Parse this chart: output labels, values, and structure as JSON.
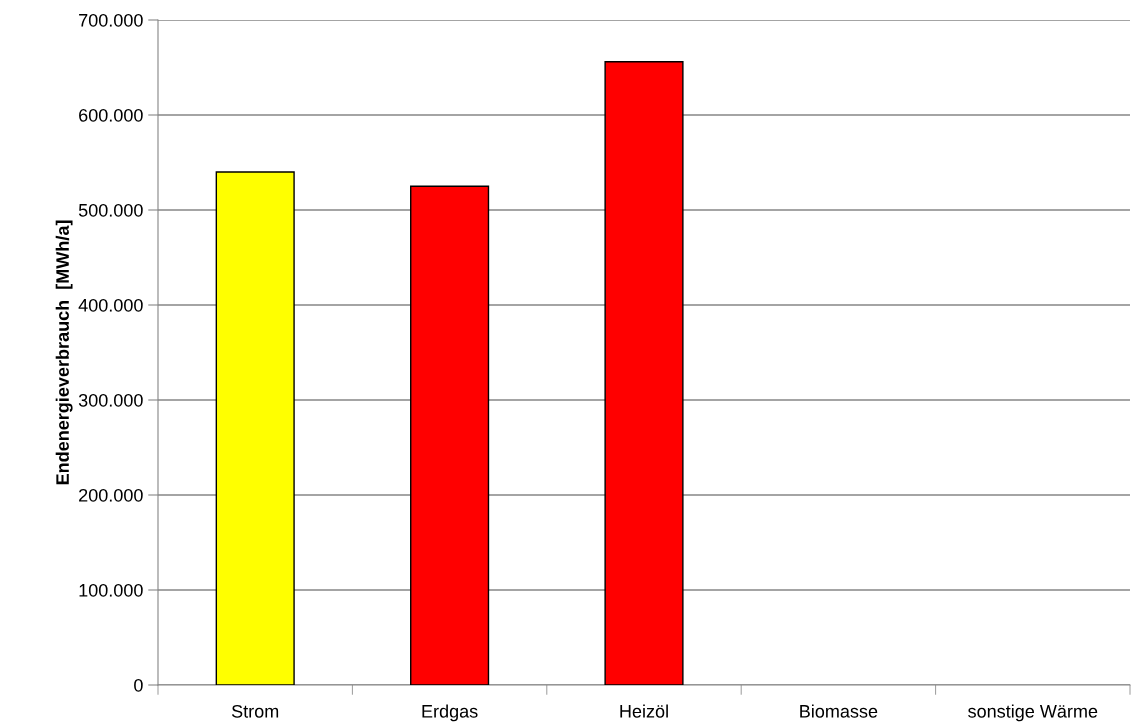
{
  "chart_data": {
    "type": "bar",
    "ylabel": "Endenergieverbrauch  [MWh/a]",
    "categories": [
      "Strom",
      "Erdgas",
      "Heizöl",
      "Biomasse",
      "sonstige Wärme"
    ],
    "values": [
      540000,
      525000,
      656000,
      0,
      0
    ],
    "colors": [
      "#ffff00",
      "#ff0000",
      "#ff0000",
      "#ff0000",
      "#ff0000"
    ],
    "ylim": [
      0,
      700000
    ],
    "yticks": [
      {
        "value": 0,
        "label": "0"
      },
      {
        "value": 100000,
        "label": "100.000"
      },
      {
        "value": 200000,
        "label": "200.000"
      },
      {
        "value": 300000,
        "label": "300.000"
      },
      {
        "value": 400000,
        "label": "400.000"
      },
      {
        "value": 500000,
        "label": "500.000"
      },
      {
        "value": 600000,
        "label": "600.000"
      },
      {
        "value": 700000,
        "label": "700.000"
      }
    ],
    "grid": "y",
    "legend": false
  }
}
